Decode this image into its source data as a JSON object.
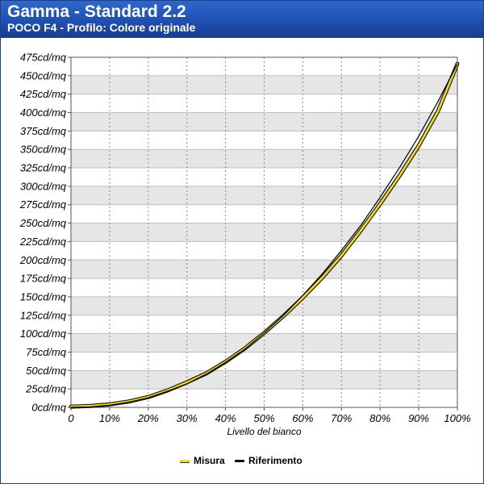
{
  "header": {
    "title": "Gamma - Standard 2.2",
    "subtitle": "POCO F4 - Profilo: Colore originale"
  },
  "colors": {
    "header": "#1f4fb0",
    "measured": "#f2dd1c",
    "reference": "#000000",
    "band": "#e6e6e6"
  },
  "chart_data": {
    "type": "line",
    "xlabel": "Livello del bianco",
    "ylabel": "",
    "x_tick_labels": [
      "0",
      "10%",
      "20%",
      "30%",
      "40%",
      "50%",
      "60%",
      "70%",
      "80%",
      "90%",
      "100%"
    ],
    "y_tick_labels": [
      "0cd/mq",
      "25cd/mq",
      "50cd/mq",
      "75cd/mq",
      "100cd/mq",
      "125cd/mq",
      "150cd/mq",
      "175cd/mq",
      "200cd/mq",
      "225cd/mq",
      "250cd/mq",
      "275cd/mq",
      "300cd/mq",
      "325cd/mq",
      "350cd/mq",
      "375cd/mq",
      "400cd/mq",
      "425cd/mq",
      "450cd/mq",
      "475cd/mq"
    ],
    "xlim": [
      0,
      100
    ],
    "ylim": [
      0,
      475
    ],
    "grid": true,
    "legend_position": "bottom",
    "series": [
      {
        "name": "Misura",
        "x": [
          0,
          5,
          10,
          15,
          20,
          25,
          30,
          35,
          40,
          45,
          50,
          55,
          60,
          65,
          70,
          75,
          80,
          85,
          90,
          95,
          100
        ],
        "y": [
          1,
          2,
          4,
          8,
          14,
          23,
          34,
          46,
          62,
          80,
          101,
          124,
          149,
          176,
          206,
          240,
          276,
          314,
          355,
          402,
          466
        ]
      },
      {
        "name": "Riferimento",
        "x": [
          0,
          5,
          10,
          15,
          20,
          25,
          30,
          35,
          40,
          45,
          50,
          55,
          60,
          65,
          70,
          75,
          80,
          85,
          90,
          95,
          100
        ],
        "y": [
          0,
          0.6,
          3,
          7,
          13,
          22,
          32,
          45,
          61,
          79,
          101,
          125,
          152,
          181,
          213,
          247,
          285,
          325,
          368,
          415,
          466
        ]
      }
    ]
  }
}
